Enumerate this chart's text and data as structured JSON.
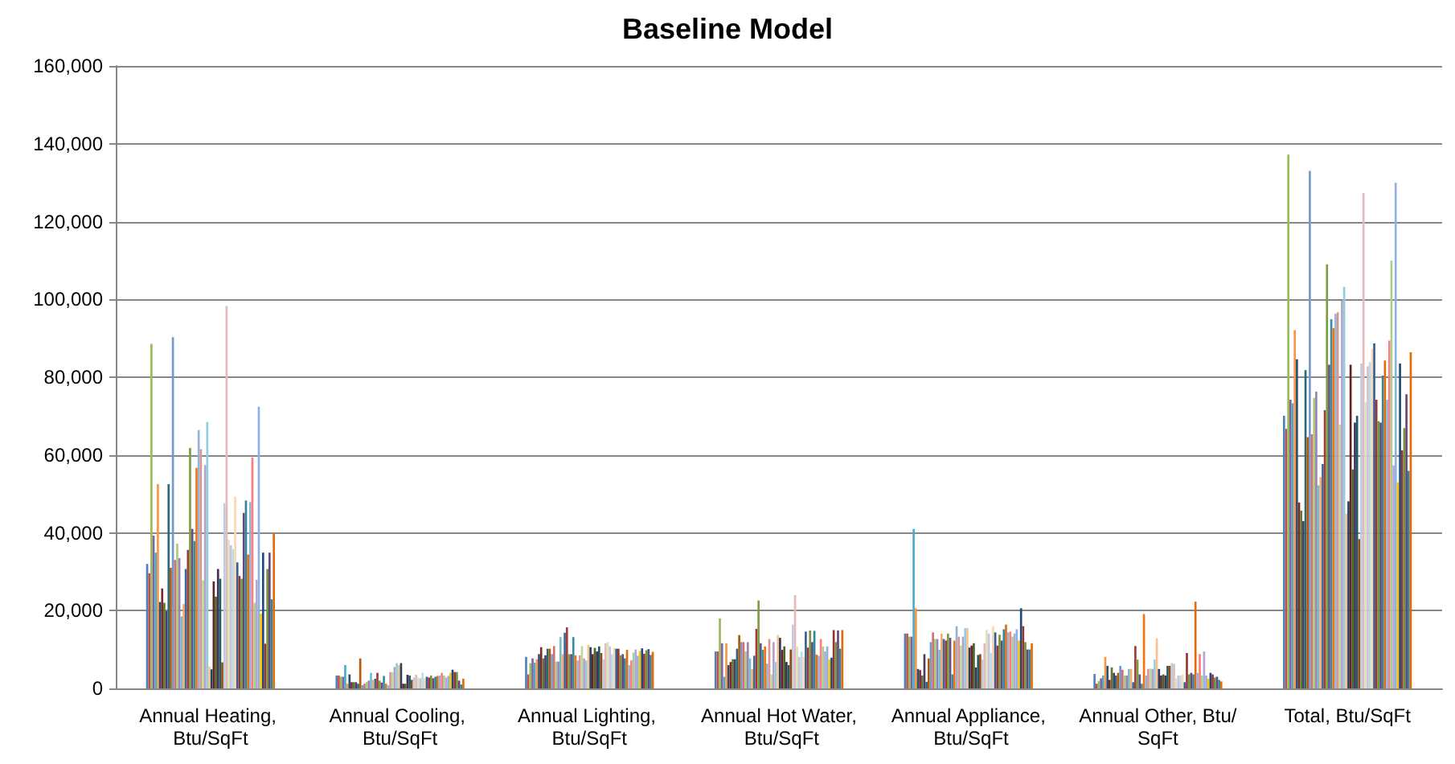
{
  "chart_data": {
    "type": "bar",
    "title": "Baseline Model",
    "categories": [
      "Annual Heating, Btu/SqFt",
      "Annual Cooling, Btu/SqFt",
      "Annual Lighting, Btu/SqFt",
      "Annual Hot Water, Btu/SqFt",
      "Annual Appliance, Btu/SqFt",
      "Annual Other, Btu/SqFt",
      "Total, Btu/SqFt"
    ],
    "ylim": [
      0,
      160000
    ],
    "yticks": [
      {
        "value": 0,
        "label": "0"
      },
      {
        "value": 20000,
        "label": "20,000"
      },
      {
        "value": 40000,
        "label": "40,000"
      },
      {
        "value": 60000,
        "label": "60,000"
      },
      {
        "value": 80000,
        "label": "80,000"
      },
      {
        "value": 100000,
        "label": "100,000"
      },
      {
        "value": 120000,
        "label": "120,000"
      },
      {
        "value": 140000,
        "label": "140,000"
      },
      {
        "value": 160000,
        "label": "160,000"
      }
    ],
    "grid": "y",
    "series": [
      {
        "color": "#4f81bd",
        "values": [
          32000,
          3300,
          8100,
          9500,
          14100,
          3700,
          70100
        ]
      },
      {
        "color": "#c0504d",
        "values": [
          29600,
          3300,
          3600,
          9500,
          14100,
          1200,
          66700
        ]
      },
      {
        "color": "#9bbb59",
        "values": [
          88600,
          3000,
          6500,
          18000,
          13300,
          1900,
          137200
        ]
      },
      {
        "color": "#8064a2",
        "values": [
          39300,
          3000,
          7700,
          11600,
          13300,
          2600,
          74200
        ]
      },
      {
        "color": "#4bacc6",
        "values": [
          34900,
          6000,
          6600,
          3000,
          41000,
          3300,
          73300
        ]
      },
      {
        "color": "#f79646",
        "values": [
          52500,
          1200,
          7500,
          11600,
          20600,
          8100,
          92100
        ]
      },
      {
        "color": "#2c4d75",
        "values": [
          22200,
          3600,
          8800,
          6000,
          5000,
          5800,
          84600
        ]
      },
      {
        "color": "#772c2a",
        "values": [
          25700,
          1600,
          10600,
          6800,
          4700,
          2200,
          47800
        ]
      },
      {
        "color": "#5f7530",
        "values": [
          22000,
          1600,
          7700,
          7500,
          3300,
          5400,
          45700
        ]
      },
      {
        "color": "#4d3b62",
        "values": [
          19900,
          1600,
          8500,
          7500,
          8800,
          4000,
          43000
        ]
      },
      {
        "color": "#276a7c",
        "values": [
          52500,
          1200,
          10200,
          10200,
          1700,
          3300,
          81800
        ]
      },
      {
        "color": "#b65708",
        "values": [
          31000,
          7700,
          10200,
          13700,
          7700,
          4000,
          64600
        ]
      },
      {
        "color": "#729aca",
        "values": [
          90300,
          800,
          8800,
          11900,
          11900,
          5800,
          133000
        ]
      },
      {
        "color": "#cd7371",
        "values": [
          33000,
          1200,
          10900,
          11900,
          14400,
          4800,
          65300
        ]
      },
      {
        "color": "#afc97a",
        "values": [
          37200,
          1600,
          6900,
          9500,
          12700,
          3300,
          74700
        ]
      },
      {
        "color": "#9983b5",
        "values": [
          33500,
          2000,
          6900,
          11900,
          12700,
          3300,
          76300
        ]
      },
      {
        "color": "#6fbdd1",
        "values": [
          18500,
          4000,
          13200,
          7700,
          9900,
          5000,
          52200
        ]
      },
      {
        "color": "#f9ab6b",
        "values": [
          21700,
          2200,
          8800,
          5000,
          14100,
          5000,
          54300
        ]
      },
      {
        "color": "#3a679c",
        "values": [
          30700,
          2500,
          14300,
          8400,
          12700,
          1600,
          57700
        ]
      },
      {
        "color": "#9f3b38",
        "values": [
          35600,
          4000,
          15700,
          15300,
          12300,
          10900,
          71500
        ]
      },
      {
        "color": "#7e9d40",
        "values": [
          61800,
          2000,
          8800,
          22600,
          14100,
          7400,
          109000
        ]
      },
      {
        "color": "#664f83",
        "values": [
          41000,
          1500,
          8800,
          11600,
          13000,
          3600,
          83200
        ]
      },
      {
        "color": "#358ea6",
        "values": [
          37900,
          3200,
          13200,
          9900,
          3600,
          1200,
          94900
        ]
      },
      {
        "color": "#f3740b",
        "values": [
          56700,
          1200,
          8500,
          10800,
          12300,
          19100,
          92600
        ]
      },
      {
        "color": "#95b3d7",
        "values": [
          66400,
          800,
          7200,
          6400,
          16000,
          3300,
          96300
        ]
      },
      {
        "color": "#d99694",
        "values": [
          61500,
          4200,
          8500,
          12700,
          13300,
          5000,
          96700
        ]
      },
      {
        "color": "#c3d69b",
        "values": [
          27800,
          4200,
          10900,
          3600,
          11000,
          5100,
          67800
        ]
      },
      {
        "color": "#b3a2c7",
        "values": [
          57400,
          5500,
          7700,
          11900,
          13300,
          5000,
          99700
        ]
      },
      {
        "color": "#93cddd",
        "values": [
          68500,
          6500,
          7200,
          6800,
          15500,
          7400,
          103200
        ]
      },
      {
        "color": "#fac090",
        "values": [
          5600,
          6000,
          11200,
          13700,
          15500,
          12900,
          44900
        ]
      },
      {
        "color": "#254061",
        "values": [
          4900,
          6500,
          10600,
          13000,
          10500,
          5000,
          48100
        ]
      },
      {
        "color": "#632523",
        "values": [
          27500,
          1200,
          8800,
          9900,
          11000,
          3300,
          83200
        ]
      },
      {
        "color": "#4f6228",
        "values": [
          23600,
          1200,
          10400,
          10800,
          11600,
          3600,
          56300
        ]
      },
      {
        "color": "#3f3151",
        "values": [
          30700,
          3500,
          9500,
          6800,
          5400,
          3300,
          68300
        ]
      },
      {
        "color": "#215968",
        "values": [
          28200,
          3300,
          10800,
          6000,
          8600,
          5800,
          70100
        ]
      },
      {
        "color": "#984807",
        "values": [
          6700,
          2200,
          9100,
          10000,
          8800,
          5800,
          38400
        ]
      },
      {
        "color": "#b9cde5",
        "values": [
          47600,
          2800,
          7500,
          16400,
          7500,
          6500,
          83500
        ]
      },
      {
        "color": "#e6b9b8",
        "values": [
          98300,
          3500,
          11600,
          24000,
          11600,
          6300,
          127300
        ]
      },
      {
        "color": "#d7e4bd",
        "values": [
          38200,
          2800,
          11900,
          10800,
          15000,
          2600,
          73600
        ]
      },
      {
        "color": "#ccc1da",
        "values": [
          36800,
          2600,
          10800,
          8100,
          14100,
          3300,
          82800
        ]
      },
      {
        "color": "#b7dee8",
        "values": [
          35800,
          4000,
          8800,
          9500,
          9100,
          3300,
          83900
        ]
      },
      {
        "color": "#fcd5b5",
        "values": [
          49300,
          2600,
          10400,
          8100,
          16000,
          3600,
          87300
        ]
      },
      {
        "color": "#376092",
        "values": [
          32400,
          3000,
          10200,
          14600,
          14400,
          1600,
          88700
        ]
      },
      {
        "color": "#953735",
        "values": [
          28900,
          2800,
          10200,
          10500,
          11000,
          9100,
          74200
        ]
      },
      {
        "color": "#77933c",
        "values": [
          28200,
          3300,
          8500,
          14900,
          13800,
          3600,
          68700
        ]
      },
      {
        "color": "#604a7b",
        "values": [
          45100,
          2600,
          8800,
          11900,
          12300,
          4000,
          68300
        ]
      },
      {
        "color": "#31859c",
        "values": [
          48300,
          3000,
          7700,
          14800,
          15200,
          3600,
          80400
        ]
      },
      {
        "color": "#e46c0a",
        "values": [
          34400,
          3200,
          9900,
          8700,
          16400,
          22300,
          84300
        ]
      },
      {
        "color": "#8eb4e3",
        "values": [
          47900,
          3300,
          6000,
          8400,
          14400,
          4000,
          74200
        ]
      },
      {
        "color": "#ff7c80",
        "values": [
          59400,
          4000,
          7200,
          12700,
          14600,
          8800,
          89400
        ]
      },
      {
        "color": "#a9d18e",
        "values": [
          22000,
          3300,
          9200,
          10800,
          13300,
          3300,
          110000
        ]
      },
      {
        "color": "#b4a7d6",
        "values": [
          27900,
          2800,
          10000,
          9500,
          14100,
          9500,
          57300
        ]
      },
      {
        "color": "#8db3e2",
        "values": [
          72400,
          3200,
          8400,
          10800,
          15200,
          3300,
          130000
        ]
      },
      {
        "color": "#ffc000",
        "values": [
          19200,
          4000,
          9600,
          7500,
          12300,
          2500,
          52900
        ]
      },
      {
        "color": "#1f497d",
        "values": [
          34900,
          4800,
          10300,
          7900,
          20600,
          4000,
          83500
        ]
      },
      {
        "color": "#943634",
        "values": [
          11500,
          4200,
          8900,
          15000,
          16000,
          3600,
          61200
        ]
      },
      {
        "color": "#76923c",
        "values": [
          30700,
          4200,
          9800,
          11900,
          11900,
          2800,
          66900
        ]
      },
      {
        "color": "#5f497a",
        "values": [
          34900,
          2000,
          10100,
          14900,
          10000,
          3000,
          75600
        ]
      },
      {
        "color": "#31849b",
        "values": [
          22900,
          1000,
          8600,
          10200,
          10000,
          2200,
          55900
        ]
      },
      {
        "color": "#e36c09",
        "values": [
          40000,
          2500,
          9400,
          15000,
          11600,
          1800,
          86400
        ]
      }
    ]
  }
}
